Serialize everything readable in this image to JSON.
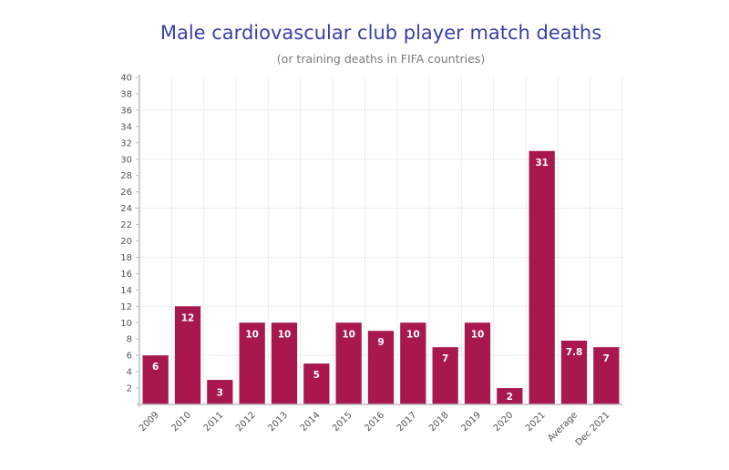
{
  "chart_data": {
    "type": "bar",
    "title": "Male cardiovascular club player match deaths",
    "subtitle": "(or training deaths in FIFA countries)",
    "xlabel": "",
    "ylabel": "",
    "categories": [
      "2009",
      "2010",
      "2011",
      "2012",
      "2013",
      "2014",
      "2015",
      "2016",
      "2017",
      "2018",
      "2019",
      "2020",
      "2021",
      "Average",
      "Dec 2021"
    ],
    "values": [
      6,
      12,
      3,
      10,
      10,
      5,
      10,
      9,
      10,
      7,
      10,
      2,
      31,
      7.8,
      7
    ],
    "data_labels": [
      "6",
      "12",
      "3",
      "10",
      "10",
      "5",
      "10",
      "9",
      "10",
      "7",
      "10",
      "2",
      "31",
      "7.8",
      "7"
    ],
    "ylim": [
      0,
      40
    ],
    "yticks": [
      2,
      4,
      6,
      8,
      10,
      12,
      14,
      16,
      18,
      20,
      22,
      24,
      26,
      28,
      30,
      32,
      34,
      36,
      38,
      40
    ],
    "horizontal_gridlines": [
      6,
      12,
      18,
      24,
      30,
      36
    ],
    "grid": true,
    "legend": "none",
    "bar_color": "#a8184f",
    "title_color": "#3a3fa8"
  }
}
